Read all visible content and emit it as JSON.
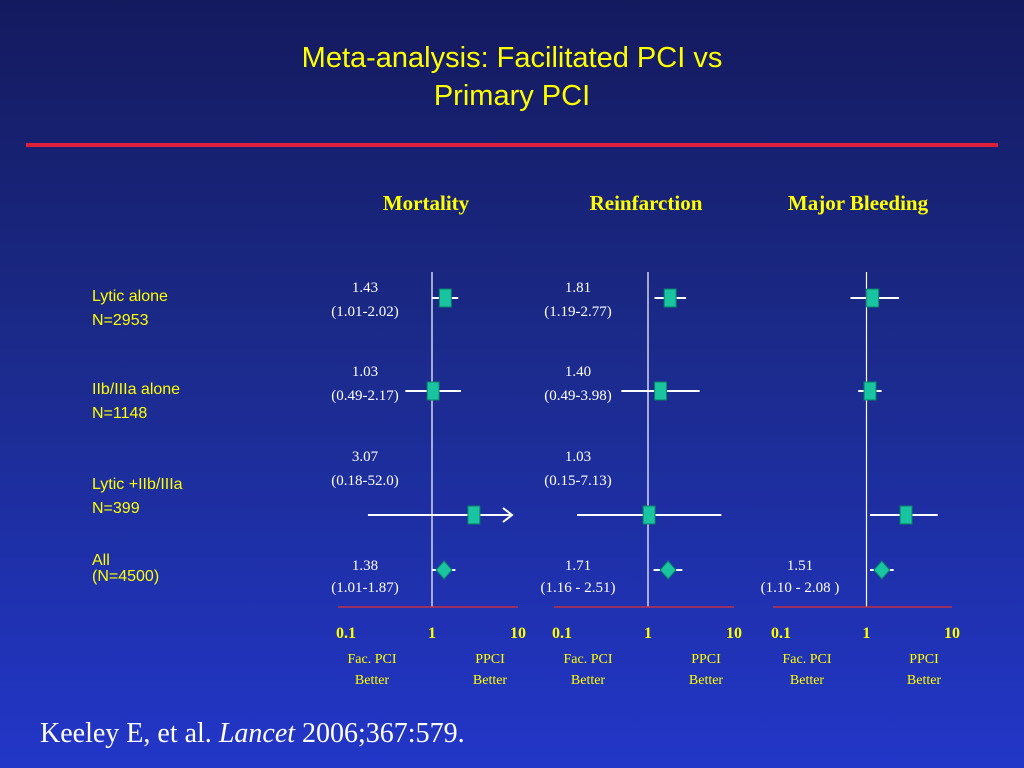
{
  "title_line1": "Meta-analysis: Facilitated PCI vs",
  "title_line2": "Primary PCI",
  "rows": [
    {
      "label1": "Lytic alone",
      "label2": "N=2953"
    },
    {
      "label1": "IIb/IIIa alone",
      "label2": "N=1148"
    },
    {
      "label1": "Lytic +IIb/IIIa",
      "label2": "N=399"
    },
    {
      "label1": "All",
      "label2": "(N=4500)"
    }
  ],
  "citation": {
    "authors": "Keeley E, et al.",
    "journal": "Lancet",
    "ref": "2006;367:579."
  },
  "colors": {
    "marker": "#19c4a0",
    "title": "#ffff00",
    "axis": "#c0304a"
  },
  "chart_data": [
    {
      "type": "forest",
      "title": "Mortality",
      "x_scale": "log",
      "xlim": [
        0.1,
        10
      ],
      "tick_labels": [
        "0.1",
        "1",
        "10"
      ],
      "xlabel_left": [
        "Fac. PCI",
        "Better"
      ],
      "xlabel_right": [
        "PPCI",
        "Better"
      ],
      "rows": [
        {
          "estimate": 1.43,
          "lower": 1.01,
          "upper": 2.02,
          "value_label": "1.43",
          "ci_label": "(1.01-2.02)",
          "marker": "square"
        },
        {
          "estimate": 1.03,
          "lower": 0.49,
          "upper": 2.17,
          "value_label": "1.03",
          "ci_label": "(0.49-2.17)",
          "marker": "square"
        },
        {
          "estimate": 3.07,
          "lower": 0.18,
          "upper": 52.0,
          "value_label": "3.07",
          "ci_label": "(0.18-52.0)",
          "marker": "square",
          "arrow_right": true
        },
        {
          "estimate": 1.38,
          "lower": 1.01,
          "upper": 1.87,
          "value_label": "1.38",
          "ci_label": "(1.01-1.87)",
          "marker": "diamond"
        }
      ]
    },
    {
      "type": "forest",
      "title": "Reinfarction",
      "x_scale": "log",
      "xlim": [
        0.1,
        10
      ],
      "tick_labels": [
        "0.1",
        "1",
        "10"
      ],
      "xlabel_left": [
        "Fac. PCI",
        "Better"
      ],
      "xlabel_right": [
        "PPCI",
        "Better"
      ],
      "rows": [
        {
          "estimate": 1.81,
          "lower": 1.19,
          "upper": 2.77,
          "value_label": "1.81",
          "ci_label": "(1.19-2.77)",
          "marker": "square"
        },
        {
          "estimate": 1.4,
          "lower": 0.49,
          "upper": 3.98,
          "value_label": "1.40",
          "ci_label": "(0.49-3.98)",
          "marker": "square"
        },
        {
          "estimate": 1.03,
          "lower": 0.15,
          "upper": 7.13,
          "value_label": "1.03",
          "ci_label": "(0.15-7.13)",
          "marker": "square"
        },
        {
          "estimate": 1.71,
          "lower": 1.16,
          "upper": 2.51,
          "value_label": "1.71",
          "ci_label": "(1.16 - 2.51)",
          "marker": "diamond"
        }
      ]
    },
    {
      "type": "forest",
      "title": "Major Bleeding",
      "x_scale": "log",
      "xlim": [
        0.1,
        10
      ],
      "tick_labels": [
        "0.1",
        "1",
        "10"
      ],
      "xlabel_left": [
        "Fac. PCI",
        "Better"
      ],
      "xlabel_right": [
        "PPCI",
        "Better"
      ],
      "rows": [
        {
          "estimate": 1.18,
          "lower": 0.65,
          "upper": 2.4,
          "value_label": "",
          "ci_label": "",
          "marker": "square"
        },
        {
          "estimate": 1.1,
          "lower": 0.8,
          "upper": 1.5,
          "value_label": "",
          "ci_label": "",
          "marker": "square"
        },
        {
          "estimate": 2.9,
          "lower": 1.1,
          "upper": 6.8,
          "value_label": "",
          "ci_label": "",
          "marker": "square"
        },
        {
          "estimate": 1.51,
          "lower": 1.1,
          "upper": 2.08,
          "value_label": "1.51",
          "ci_label": "(1.10 - 2.08 )",
          "marker": "diamond"
        }
      ]
    }
  ]
}
